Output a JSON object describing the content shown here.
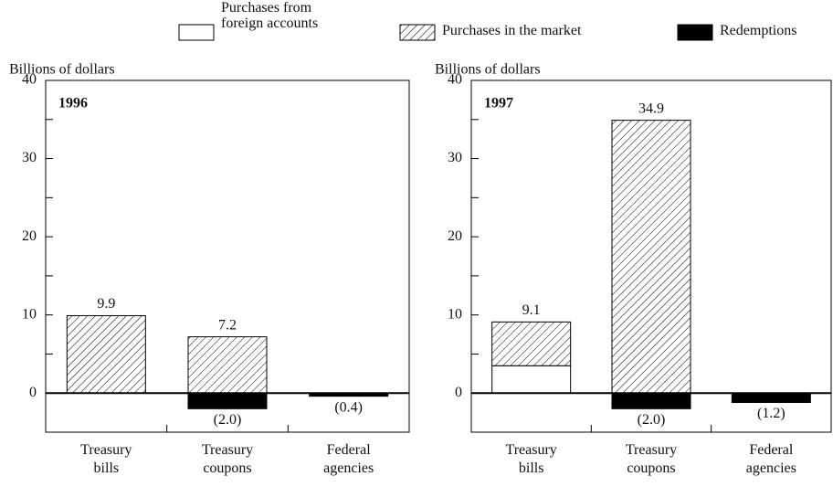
{
  "chart_data": [
    {
      "type": "bar",
      "stacked": true,
      "panel_label": "1996",
      "ylabel": "Billions of dollars",
      "categories": [
        "Treasury bills",
        "Treasury coupons",
        "Federal agencies"
      ],
      "series": [
        {
          "name": "Purchases from foreign accounts",
          "color": "#ffffff",
          "pattern": "solid",
          "values": [
            null,
            null,
            null
          ]
        },
        {
          "name": "Purchases in the market",
          "color": "#000000",
          "pattern": "hatch",
          "values": [
            9.9,
            7.2,
            null
          ]
        },
        {
          "name": "Redemptions",
          "color": "#000000",
          "pattern": "solid",
          "values": [
            null,
            -2.0,
            -0.4
          ],
          "value_labels": [
            null,
            "(2.0)",
            "(0.4)"
          ]
        }
      ],
      "totals": [
        9.9,
        7.2,
        null
      ],
      "ylim": [
        -5,
        40
      ],
      "yticks": [
        0,
        10,
        20,
        30,
        40
      ],
      "minor_yticks": [
        -5,
        5,
        15,
        25,
        35
      ]
    },
    {
      "type": "bar",
      "stacked": true,
      "panel_label": "1997",
      "ylabel": "Billions of dollars",
      "categories": [
        "Treasury bills",
        "Treasury coupons",
        "Federal agencies"
      ],
      "series": [
        {
          "name": "Purchases from foreign accounts",
          "color": "#ffffff",
          "pattern": "solid",
          "values": [
            3.5,
            null,
            null
          ]
        },
        {
          "name": "Purchases in the market",
          "color": "#000000",
          "pattern": "hatch",
          "values": [
            5.6,
            34.9,
            null
          ]
        },
        {
          "name": "Redemptions",
          "color": "#000000",
          "pattern": "solid",
          "values": [
            null,
            -2.0,
            -1.2
          ],
          "value_labels": [
            null,
            "(2.0)",
            "(1.2)"
          ]
        }
      ],
      "totals": [
        9.1,
        34.9,
        null
      ],
      "ylim": [
        -5,
        40
      ],
      "yticks": [
        0,
        10,
        20,
        30,
        40
      ],
      "minor_yticks": [
        -5,
        5,
        15,
        25,
        35
      ]
    }
  ]
}
